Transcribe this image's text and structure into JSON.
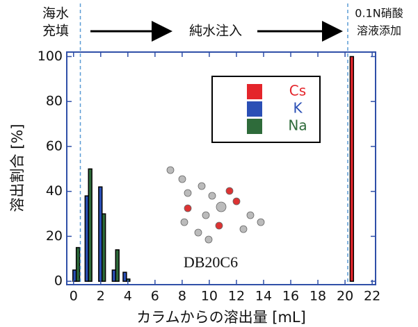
{
  "chart_data": {
    "type": "bar",
    "y_label": "溶出割合 [%]",
    "x_label": "カラムからの溶出量 [mL]",
    "phase_labels": [
      [
        "海水",
        "充填"
      ],
      [
        "純水注入"
      ],
      [
        "0.1N硝酸",
        "溶液添加"
      ]
    ],
    "phase_boundaries": [
      0.5,
      20.2
    ],
    "inset_label": "DB20C6",
    "x": [
      0.2,
      1.1,
      2.1,
      3.1,
      3.9,
      20.5
    ],
    "series": [
      {
        "name": "Cs",
        "color": "#e4252b",
        "values": [
          0,
          0,
          0,
          0,
          0,
          100
        ]
      },
      {
        "name": "K",
        "color": "#2a4fb5",
        "values": [
          5,
          38,
          42,
          5,
          4,
          0
        ]
      },
      {
        "name": "Na",
        "color": "#2e6b3a",
        "values": [
          15,
          50,
          30,
          14,
          1,
          0
        ]
      }
    ],
    "xlim": [
      -0.5,
      22.25
    ],
    "ylim": [
      -1.5,
      102
    ],
    "xticks": [
      0,
      2,
      4,
      6,
      8,
      10,
      12,
      14,
      16,
      18,
      20,
      22
    ],
    "yticks": [
      0,
      20,
      40,
      60,
      80,
      100
    ]
  }
}
